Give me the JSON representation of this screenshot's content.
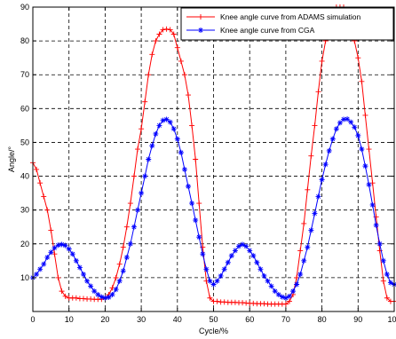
{
  "chart_data": {
    "type": "line",
    "title": "",
    "xlabel": "Cycle/%",
    "ylabel": "Angle/°",
    "xlim": [
      0,
      100
    ],
    "ylim": [
      0,
      90
    ],
    "xticks": [
      0,
      10,
      20,
      30,
      40,
      50,
      60,
      70,
      80,
      90,
      100
    ],
    "yticks": [
      10,
      20,
      30,
      40,
      50,
      60,
      70,
      80,
      90
    ],
    "grid": true,
    "legend_position": "top-right",
    "series": [
      {
        "name": "Knee angle curve from ADAMS simulation",
        "color": "#ff0000",
        "marker": "plus",
        "x": [
          0,
          1,
          2,
          3,
          4,
          5,
          6,
          7,
          8,
          9,
          10,
          11,
          12,
          13,
          14,
          15,
          16,
          17,
          18,
          19,
          20,
          21,
          22,
          23,
          24,
          25,
          26,
          27,
          28,
          29,
          30,
          31,
          32,
          33,
          34,
          35,
          36,
          37,
          38,
          39,
          40,
          41,
          42,
          43,
          44,
          45,
          46,
          47,
          48,
          49,
          50,
          51,
          52,
          53,
          54,
          55,
          56,
          57,
          58,
          59,
          60,
          61,
          62,
          63,
          64,
          65,
          66,
          67,
          68,
          69,
          70,
          71,
          72,
          73,
          74,
          75,
          76,
          77,
          78,
          79,
          80,
          81,
          82,
          83,
          84,
          85,
          86,
          87,
          88,
          89,
          90,
          91,
          92,
          93,
          94,
          95,
          96,
          97,
          98,
          99,
          100
        ],
        "values": [
          44,
          42,
          38,
          34,
          30,
          24,
          17,
          10,
          6,
          4.5,
          4,
          4,
          4,
          3.8,
          3.8,
          3.7,
          3.7,
          3.6,
          3.6,
          3.6,
          4,
          5,
          7,
          10,
          14,
          19,
          25,
          32,
          40,
          48,
          54,
          62,
          70,
          76,
          80,
          82,
          83.3,
          83.5,
          83.3,
          82,
          78,
          74,
          70,
          64,
          55,
          45,
          32,
          19,
          9,
          4,
          3,
          3,
          2.8,
          2.8,
          2.7,
          2.7,
          2.7,
          2.6,
          2.6,
          2.5,
          2.4,
          2.4,
          2.3,
          2.3,
          2.3,
          2.2,
          2.2,
          2.2,
          2.2,
          2.2,
          2.2,
          3,
          5,
          10,
          18,
          26,
          36,
          46,
          55,
          65,
          74,
          80,
          85,
          89,
          90,
          90.5,
          90,
          88,
          84,
          80,
          75,
          68,
          58,
          48,
          38,
          28,
          18,
          9,
          4,
          3,
          3
        ]
      },
      {
        "name": "Knee angle curve from CGA",
        "color": "#0000ff",
        "marker": "star",
        "x": [
          0,
          1,
          2,
          3,
          4,
          5,
          6,
          7,
          8,
          9,
          10,
          11,
          12,
          13,
          14,
          15,
          16,
          17,
          18,
          19,
          20,
          21,
          22,
          23,
          24,
          25,
          26,
          27,
          28,
          29,
          30,
          31,
          32,
          33,
          34,
          35,
          36,
          37,
          38,
          39,
          40,
          41,
          42,
          43,
          44,
          45,
          46,
          47,
          48,
          49,
          50,
          51,
          52,
          53,
          54,
          55,
          56,
          57,
          58,
          59,
          60,
          61,
          62,
          63,
          64,
          65,
          66,
          67,
          68,
          69,
          70,
          71,
          72,
          73,
          74,
          75,
          76,
          77,
          78,
          79,
          80,
          81,
          82,
          83,
          84,
          85,
          86,
          87,
          88,
          89,
          90,
          91,
          92,
          93,
          94,
          95,
          96,
          97,
          98,
          99,
          100
        ],
        "values": [
          10,
          11,
          12.5,
          14,
          16,
          17.5,
          18.8,
          19.6,
          19.8,
          19.5,
          18.5,
          17,
          15,
          13,
          11,
          9,
          7.5,
          6,
          5,
          4.3,
          4,
          4.2,
          5,
          6.5,
          9,
          12,
          16,
          20,
          25,
          30,
          35,
          40,
          45,
          49,
          52.5,
          55,
          56.5,
          56.8,
          56,
          54,
          51,
          47,
          42,
          37,
          32,
          27,
          22,
          17,
          12.5,
          9,
          8,
          9,
          10.5,
          12.5,
          14.5,
          16.5,
          18,
          19.3,
          19.8,
          19.3,
          18,
          16.5,
          14.5,
          12.5,
          10.5,
          9,
          7.5,
          6,
          5,
          4.3,
          4,
          4.5,
          6,
          8,
          11,
          15,
          19,
          24,
          29,
          34,
          39,
          43.5,
          47.5,
          51,
          54,
          55.8,
          56.8,
          56.9,
          56,
          54.5,
          52,
          48,
          43,
          37.5,
          31.5,
          25.5,
          20,
          15,
          11,
          8.5,
          8
        ]
      }
    ]
  }
}
